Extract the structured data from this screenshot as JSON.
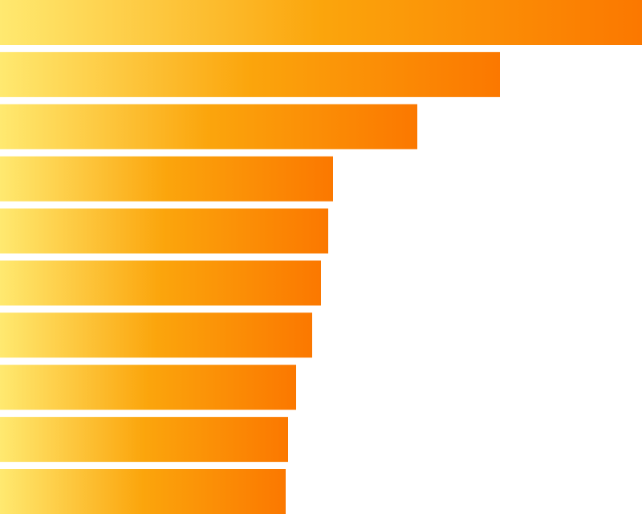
{
  "chart_data": {
    "type": "bar",
    "orientation": "horizontal",
    "values": [
      800,
      623,
      520,
      415,
      409,
      400,
      389,
      369,
      359,
      356
    ],
    "xlim": [
      0,
      800
    ],
    "gradient": [
      "#ffe970",
      "#fba50c",
      "#fb7800"
    ]
  }
}
